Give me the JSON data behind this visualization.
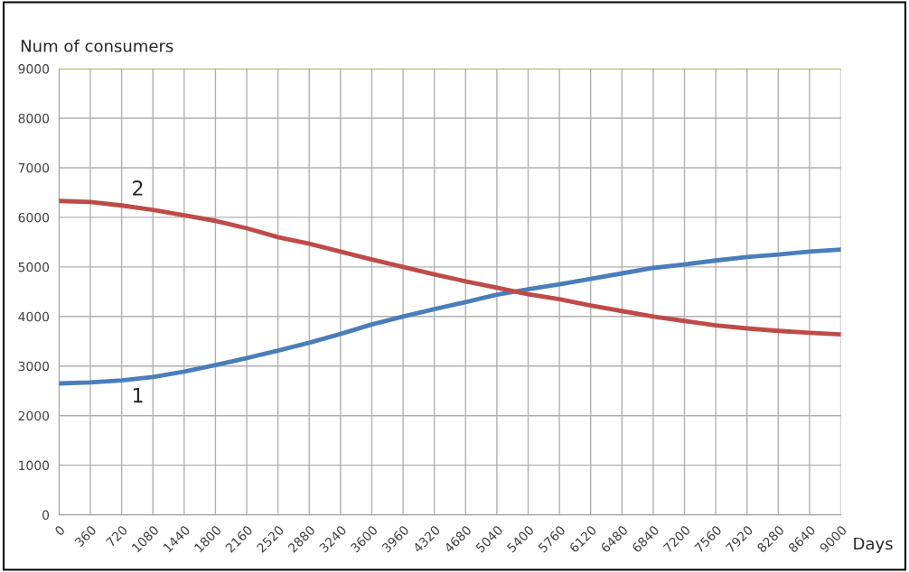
{
  "chart_data": {
    "type": "line",
    "ylabel": "Num of consumers",
    "xlabel": "Days",
    "x": [
      0,
      360,
      720,
      1080,
      1440,
      1800,
      2160,
      2520,
      2880,
      3240,
      3600,
      3960,
      4320,
      4680,
      5040,
      5400,
      5760,
      6120,
      6480,
      6840,
      7200,
      7560,
      7920,
      8280,
      8640,
      9000
    ],
    "series": [
      {
        "name": "1",
        "color": "#4a7ebb",
        "values": [
          2650,
          2670,
          2710,
          2780,
          2890,
          3020,
          3160,
          3310,
          3470,
          3650,
          3840,
          4000,
          4150,
          4290,
          4440,
          4550,
          4650,
          4760,
          4870,
          4980,
          5050,
          5130,
          5200,
          5250,
          5310,
          5350
        ]
      },
      {
        "name": "2",
        "color": "#be4b48",
        "values": [
          6330,
          6310,
          6240,
          6150,
          6040,
          5930,
          5780,
          5600,
          5470,
          5310,
          5150,
          5000,
          4850,
          4710,
          4580,
          4450,
          4350,
          4220,
          4110,
          4000,
          3910,
          3820,
          3760,
          3710,
          3670,
          3640
        ]
      },
      {
        "color": "#9bbb59",
        "x": [
          0,
          9000
        ],
        "values": [
          9000,
          9000
        ]
      }
    ],
    "xlim": [
      0,
      9000
    ],
    "xticks": [
      0,
      360,
      720,
      1080,
      1440,
      1800,
      2160,
      2520,
      2880,
      3240,
      3600,
      3960,
      4320,
      4680,
      5040,
      5400,
      5760,
      6120,
      6480,
      6840,
      7200,
      7560,
      7920,
      8280,
      8640,
      9000
    ],
    "ylim": [
      0,
      9000
    ],
    "yticks": [
      0,
      1000,
      2000,
      3000,
      4000,
      5000,
      6000,
      7000,
      8000,
      9000
    ],
    "grid": true,
    "legend": false
  }
}
